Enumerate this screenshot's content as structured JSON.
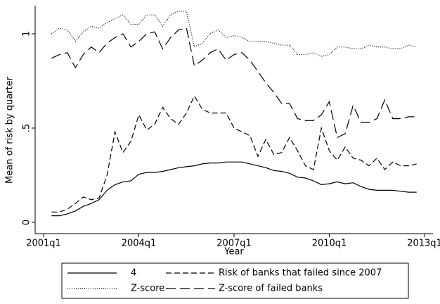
{
  "chart_data": {
    "type": "line",
    "y_label": "Mean of risk by quarter",
    "x_label": "Year",
    "categories": [
      "2001q1",
      null,
      null,
      null,
      null,
      null,
      null,
      null,
      null,
      null,
      null,
      null,
      "2004q1",
      null,
      null,
      null,
      null,
      null,
      null,
      null,
      null,
      null,
      null,
      null,
      "2007q1",
      null,
      null,
      null,
      null,
      null,
      null,
      null,
      null,
      null,
      null,
      null,
      "2010q1",
      null,
      null,
      null,
      null,
      null,
      null,
      null,
      null,
      null,
      null,
      null,
      "2013q1"
    ],
    "ylim": [
      0,
      1.15
    ],
    "yticks": [
      0,
      {
        "value": 0.5,
        "label": ".5"
      },
      1
    ],
    "series": [
      {
        "name": "4",
        "color": "#000000",
        "dash": "solid",
        "values": [
          null,
          0.035,
          0.035,
          0.045,
          0.06,
          0.085,
          0.1,
          0.12,
          0.17,
          0.2,
          0.215,
          0.22,
          0.255,
          0.265,
          0.265,
          0.27,
          0.28,
          0.29,
          0.295,
          0.3,
          0.31,
          0.315,
          0.315,
          0.32,
          0.32,
          0.32,
          0.31,
          0.3,
          0.29,
          0.275,
          0.27,
          0.26,
          0.24,
          0.235,
          0.22,
          0.2,
          0.205,
          0.215,
          0.205,
          0.21,
          0.19,
          0.175,
          0.17,
          0.17,
          0.17,
          0.165,
          0.16,
          0.16,
          null
        ]
      },
      {
        "name": "Risk of banks that failed since 2007",
        "color": "#000000",
        "dash": "dashed",
        "values": [
          null,
          0.055,
          0.055,
          0.07,
          0.1,
          0.135,
          0.12,
          0.13,
          0.25,
          0.48,
          0.37,
          0.43,
          0.57,
          0.49,
          0.52,
          0.61,
          0.55,
          0.52,
          0.58,
          0.67,
          0.6,
          0.58,
          0.58,
          0.58,
          0.5,
          0.48,
          0.46,
          0.35,
          0.44,
          0.36,
          0.37,
          0.45,
          0.38,
          0.3,
          0.28,
          0.5,
          0.38,
          0.33,
          0.4,
          0.34,
          0.33,
          0.3,
          0.34,
          0.28,
          0.32,
          0.3,
          0.3,
          0.31,
          null
        ]
      },
      {
        "name": "Z-score",
        "color": "#000000",
        "dash": "dotted",
        "values": [
          null,
          1.0,
          1.03,
          1.02,
          0.96,
          1.01,
          1.04,
          1.03,
          1.06,
          1.08,
          1.1,
          1.05,
          1.05,
          1.1,
          1.1,
          1.04,
          1.1,
          1.12,
          1.12,
          0.93,
          0.95,
          1.0,
          1.02,
          0.98,
          0.99,
          0.98,
          0.96,
          0.96,
          0.96,
          0.95,
          0.94,
          0.94,
          0.89,
          0.89,
          0.9,
          0.88,
          0.89,
          0.93,
          0.93,
          0.92,
          0.92,
          0.94,
          0.93,
          0.93,
          0.92,
          0.92,
          0.94,
          0.93,
          null
        ]
      },
      {
        "name": "Z-score of failed banks",
        "color": "#000000",
        "dash": "longdash",
        "values": [
          null,
          0.87,
          0.89,
          0.9,
          0.82,
          0.89,
          0.93,
          0.9,
          0.95,
          0.98,
          1.0,
          0.93,
          0.96,
          1.0,
          1.01,
          0.92,
          0.98,
          1.02,
          1.03,
          0.83,
          0.86,
          0.9,
          0.92,
          0.86,
          0.89,
          0.9,
          0.86,
          0.8,
          0.74,
          0.69,
          0.63,
          0.63,
          0.55,
          0.54,
          0.54,
          0.57,
          0.64,
          0.45,
          0.47,
          0.62,
          0.53,
          0.53,
          0.55,
          0.65,
          0.55,
          0.55,
          0.56,
          0.56,
          null
        ]
      }
    ]
  }
}
